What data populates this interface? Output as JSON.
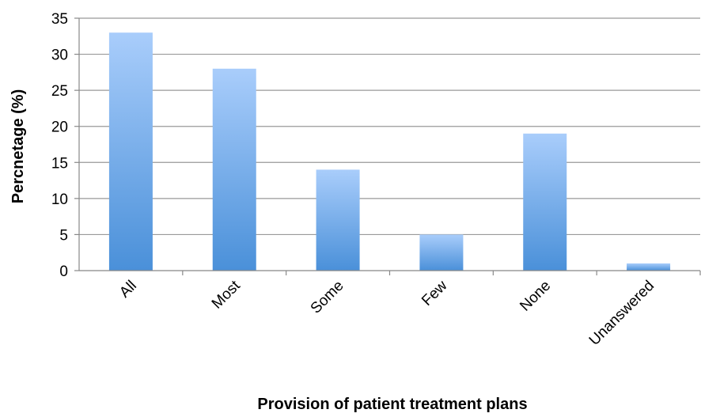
{
  "chart_data": {
    "type": "bar",
    "categories": [
      "All",
      "Most",
      "Some",
      "Few",
      "None",
      "Unanswered"
    ],
    "values": [
      33,
      28,
      14,
      5,
      19,
      1
    ],
    "title": "",
    "xlabel": "Provision of patient treatment plans",
    "ylabel": "Percnetage (%)",
    "ylim": [
      0,
      35
    ],
    "yticks": [
      "0",
      "5",
      "10",
      "15",
      "20",
      "25",
      "30",
      "35"
    ],
    "grid": true,
    "colors": {
      "bar_top": "#a9cdfb",
      "bar_bottom": "#4a90d9",
      "grid": "#999999",
      "axis": "#888888"
    }
  }
}
